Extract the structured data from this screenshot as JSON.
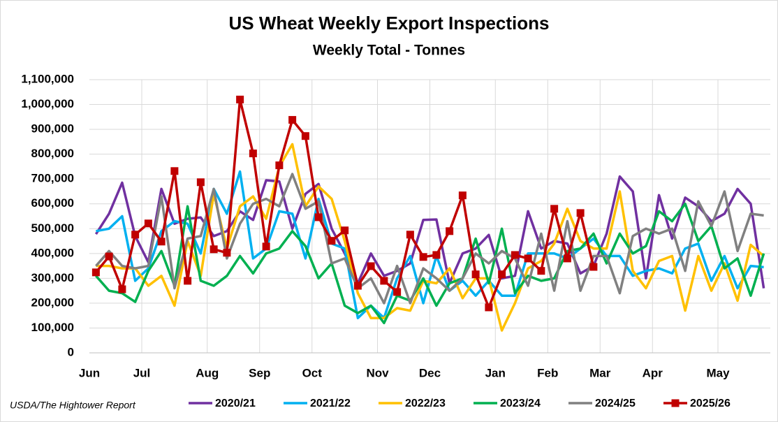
{
  "chart_data": {
    "type": "line",
    "title": "US Wheat Weekly Export Inspections",
    "subtitle": "Weekly Total - Tonnes",
    "source": "USDA/The Hightower Report",
    "categories": [
      "Jun",
      null,
      null,
      null,
      "Jul",
      null,
      null,
      null,
      null,
      "Aug",
      null,
      null,
      null,
      "Sep",
      null,
      null,
      null,
      "Oct",
      null,
      null,
      null,
      null,
      "Nov",
      null,
      null,
      null,
      "Dec",
      null,
      null,
      null,
      null,
      "Jan",
      null,
      null,
      null,
      "Feb",
      null,
      null,
      null,
      "Mar",
      null,
      null,
      null,
      "Apr",
      null,
      null,
      null,
      null,
      "May",
      null,
      null,
      null
    ],
    "ylim": [
      0,
      1100000
    ],
    "yticks": [
      0,
      {
        "value": 100000,
        "label": "100,000"
      },
      {
        "value": 200000,
        "label": "200,000"
      },
      {
        "value": 300000,
        "label": "300,000"
      },
      {
        "value": 400000,
        "label": "400,000"
      },
      {
        "value": 500000,
        "label": "500,000"
      },
      {
        "value": 600000,
        "label": "600,000"
      },
      {
        "value": 700000,
        "label": "700,000"
      },
      {
        "value": 800000,
        "label": "800,000"
      },
      {
        "value": 900000,
        "label": "900,000"
      },
      {
        "value": 1000000,
        "label": "1,000,000"
      },
      {
        "value": 1100000,
        "label": "1,100,000"
      }
    ],
    "grid": true,
    "legend": "bottom",
    "series": [
      {
        "name": "2020/21",
        "color": "#7030a0",
        "values": [
          478000,
          560000,
          685000,
          470000,
          365000,
          660000,
          520000,
          540000,
          545000,
          470000,
          490000,
          570000,
          535000,
          695000,
          690000,
          500000,
          640000,
          680000,
          500000,
          400000,
          280000,
          400000,
          310000,
          330000,
          360000,
          535000,
          537000,
          280000,
          400000,
          420000,
          475000,
          300000,
          310000,
          570000,
          420000,
          450000,
          440000,
          320000,
          350000,
          480000,
          710000,
          650000,
          300000,
          635000,
          460000,
          625000,
          590000,
          530000,
          560000,
          660000,
          600000,
          260000
        ]
      },
      {
        "name": "2021/22",
        "color": "#00b0f0",
        "values": [
          490000,
          500000,
          550000,
          290000,
          340000,
          490000,
          530000,
          520000,
          400000,
          660000,
          560000,
          730000,
          380000,
          420000,
          570000,
          560000,
          380000,
          620000,
          440000,
          420000,
          140000,
          190000,
          140000,
          300000,
          390000,
          200000,
          390000,
          250000,
          290000,
          230000,
          290000,
          230000,
          230000,
          400000,
          400000,
          400000,
          380000,
          420000,
          460000,
          390000,
          390000,
          310000,
          330000,
          340000,
          320000,
          420000,
          440000,
          290000,
          390000,
          260000,
          350000,
          345000
        ]
      },
      {
        "name": "2022/23",
        "color": "#ffc000",
        "values": [
          350000,
          350000,
          340000,
          340000,
          270000,
          310000,
          190000,
          450000,
          310000,
          640000,
          420000,
          590000,
          630000,
          540000,
          750000,
          840000,
          590000,
          670000,
          620000,
          450000,
          240000,
          140000,
          140000,
          180000,
          170000,
          290000,
          280000,
          340000,
          220000,
          300000,
          300000,
          90000,
          200000,
          340000,
          370000,
          440000,
          580000,
          450000,
          420000,
          420000,
          650000,
          330000,
          260000,
          370000,
          390000,
          170000,
          390000,
          250000,
          360000,
          210000,
          435000,
          390000
        ]
      },
      {
        "name": "2023/24",
        "color": "#00b050",
        "values": [
          310000,
          250000,
          240000,
          205000,
          330000,
          410000,
          270000,
          590000,
          290000,
          270000,
          310000,
          390000,
          320000,
          400000,
          420000,
          490000,
          430000,
          300000,
          360000,
          190000,
          160000,
          190000,
          120000,
          230000,
          210000,
          300000,
          190000,
          280000,
          300000,
          460000,
          280000,
          500000,
          240000,
          310000,
          290000,
          300000,
          410000,
          420000,
          480000,
          360000,
          480000,
          400000,
          430000,
          570000,
          530000,
          600000,
          450000,
          510000,
          340000,
          380000,
          230000,
          400000
        ]
      },
      {
        "name": "2024/25",
        "color": "#808080",
        "values": [
          350000,
          410000,
          350000,
          340000,
          350000,
          630000,
          260000,
          460000,
          470000,
          660000,
          380000,
          520000,
          600000,
          620000,
          590000,
          720000,
          580000,
          610000,
          360000,
          380000,
          260000,
          300000,
          200000,
          350000,
          200000,
          340000,
          300000,
          250000,
          300000,
          400000,
          360000,
          410000,
          380000,
          270000,
          480000,
          250000,
          530000,
          250000,
          390000,
          390000,
          240000,
          470000,
          500000,
          480000,
          500000,
          330000,
          610000,
          510000,
          650000,
          410000,
          560000,
          553000
        ]
      },
      {
        "name": "2025/26",
        "color": "#c00000",
        "marker": "square",
        "values": [
          324000,
          388000,
          256000,
          476000,
          521000,
          448000,
          732000,
          290000,
          687000,
          417000,
          403000,
          1020000,
          803000,
          428000,
          755000,
          938000,
          873000,
          546000,
          451000,
          493000,
          270000,
          349000,
          290000,
          245000,
          476000,
          386000,
          394000,
          490000,
          634000,
          316000,
          183000,
          316000,
          394000,
          380000,
          330000,
          580000,
          380000,
          563000,
          346000,
          null,
          null,
          null,
          null,
          null,
          null,
          null,
          null,
          null,
          null,
          null,
          null,
          null
        ]
      }
    ]
  }
}
